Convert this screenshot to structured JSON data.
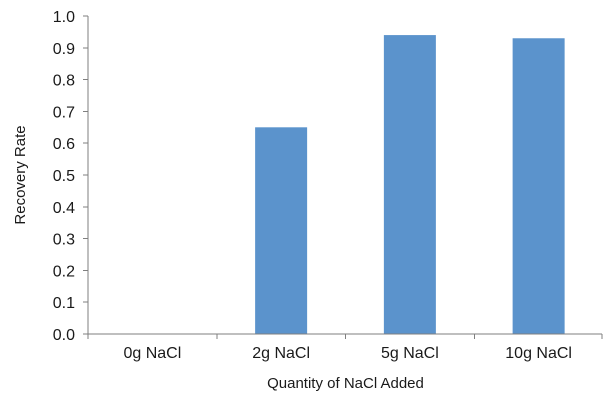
{
  "chart_data": {
    "type": "bar",
    "categories": [
      "0g NaCl",
      "2g NaCl",
      "5g NaCl",
      "10g NaCl"
    ],
    "values": [
      0.0,
      0.65,
      0.94,
      0.93
    ],
    "title": "",
    "xlabel": "Quantity of NaCl Added",
    "ylabel": "Recovery Rate",
    "ylim": [
      0,
      1.0
    ],
    "yticks": [
      "0.0",
      "0.1",
      "0.2",
      "0.3",
      "0.4",
      "0.5",
      "0.6",
      "0.7",
      "0.8",
      "0.9",
      "1.0"
    ],
    "grid": false,
    "legend": "none",
    "bar_color": "#5b93cc"
  }
}
